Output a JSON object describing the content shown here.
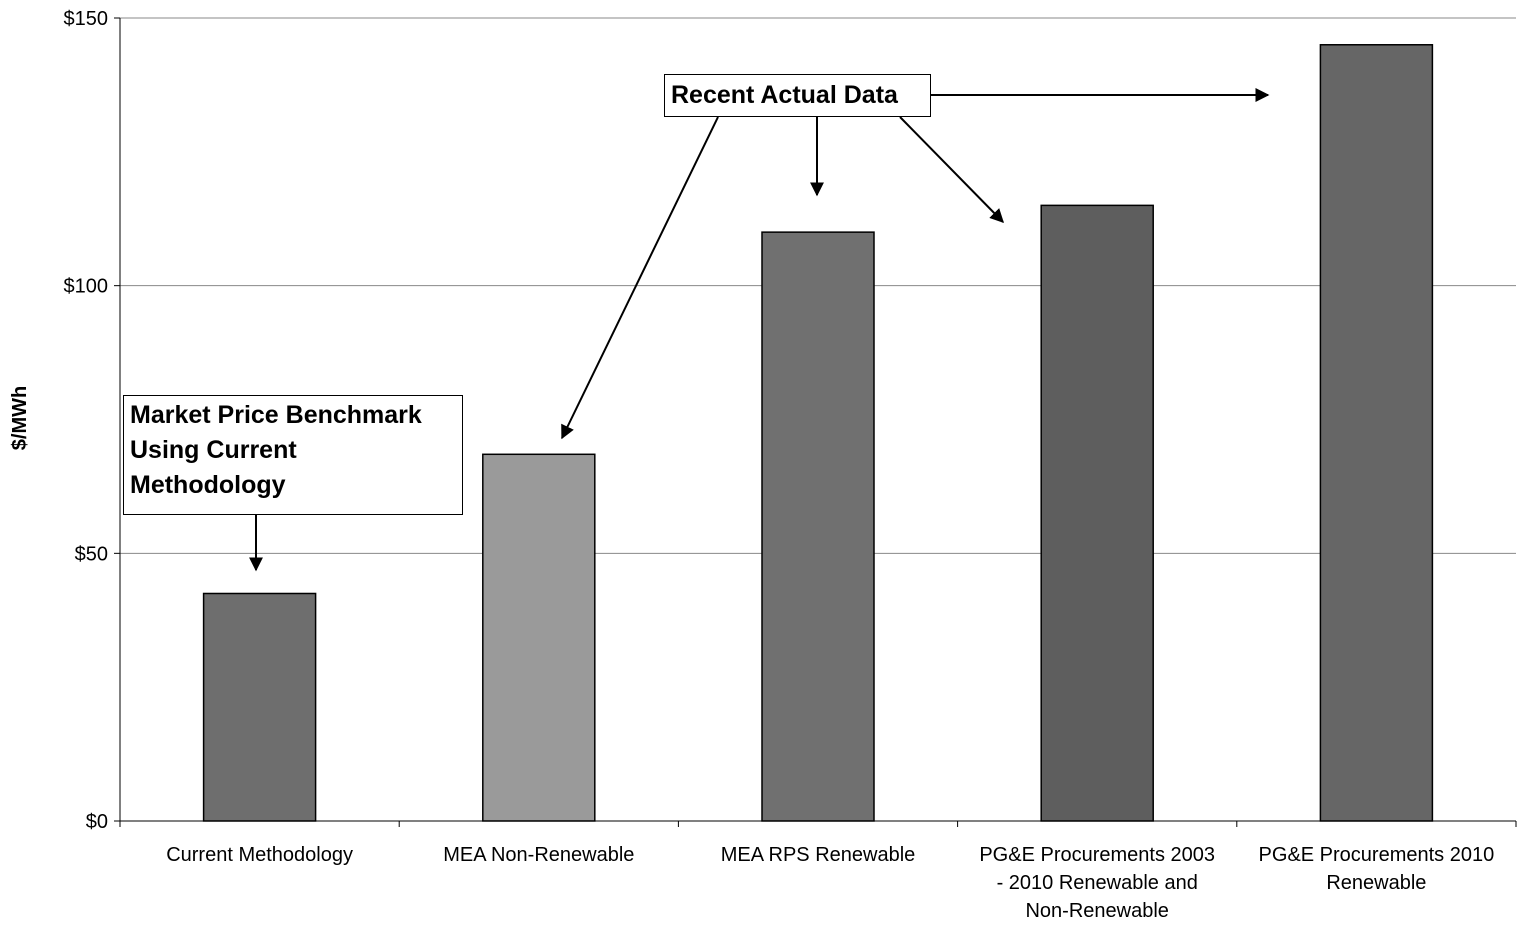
{
  "chart_data": {
    "type": "bar",
    "categories": [
      [
        "Current Methodology"
      ],
      [
        "MEA Non-Renewable"
      ],
      [
        "MEA RPS Renewable"
      ],
      [
        "PG&E Procurements 2003",
        "- 2010 Renewable and",
        "Non-Renewable"
      ],
      [
        "PG&E Procurements 2010",
        "Renewable"
      ]
    ],
    "values": [
      42.5,
      68.5,
      110,
      115,
      145
    ],
    "ylabel": "$/MWh",
    "xlabel": "",
    "title": "",
    "ylim": [
      0,
      150
    ],
    "yticks": [
      0,
      50,
      100,
      150
    ],
    "ytick_labels": [
      "$0",
      "$50",
      "$100",
      "$150"
    ],
    "grid": true,
    "bar_colors": [
      "#6e6e6e",
      "#9a9a9a",
      "#707070",
      "#5e5e5e",
      "#666666"
    ],
    "annotations": [
      {
        "lines": [
          "Market Price Benchmark",
          "Using Current",
          "Methodology"
        ]
      },
      {
        "lines": [
          "Recent Actual Data"
        ]
      }
    ]
  }
}
